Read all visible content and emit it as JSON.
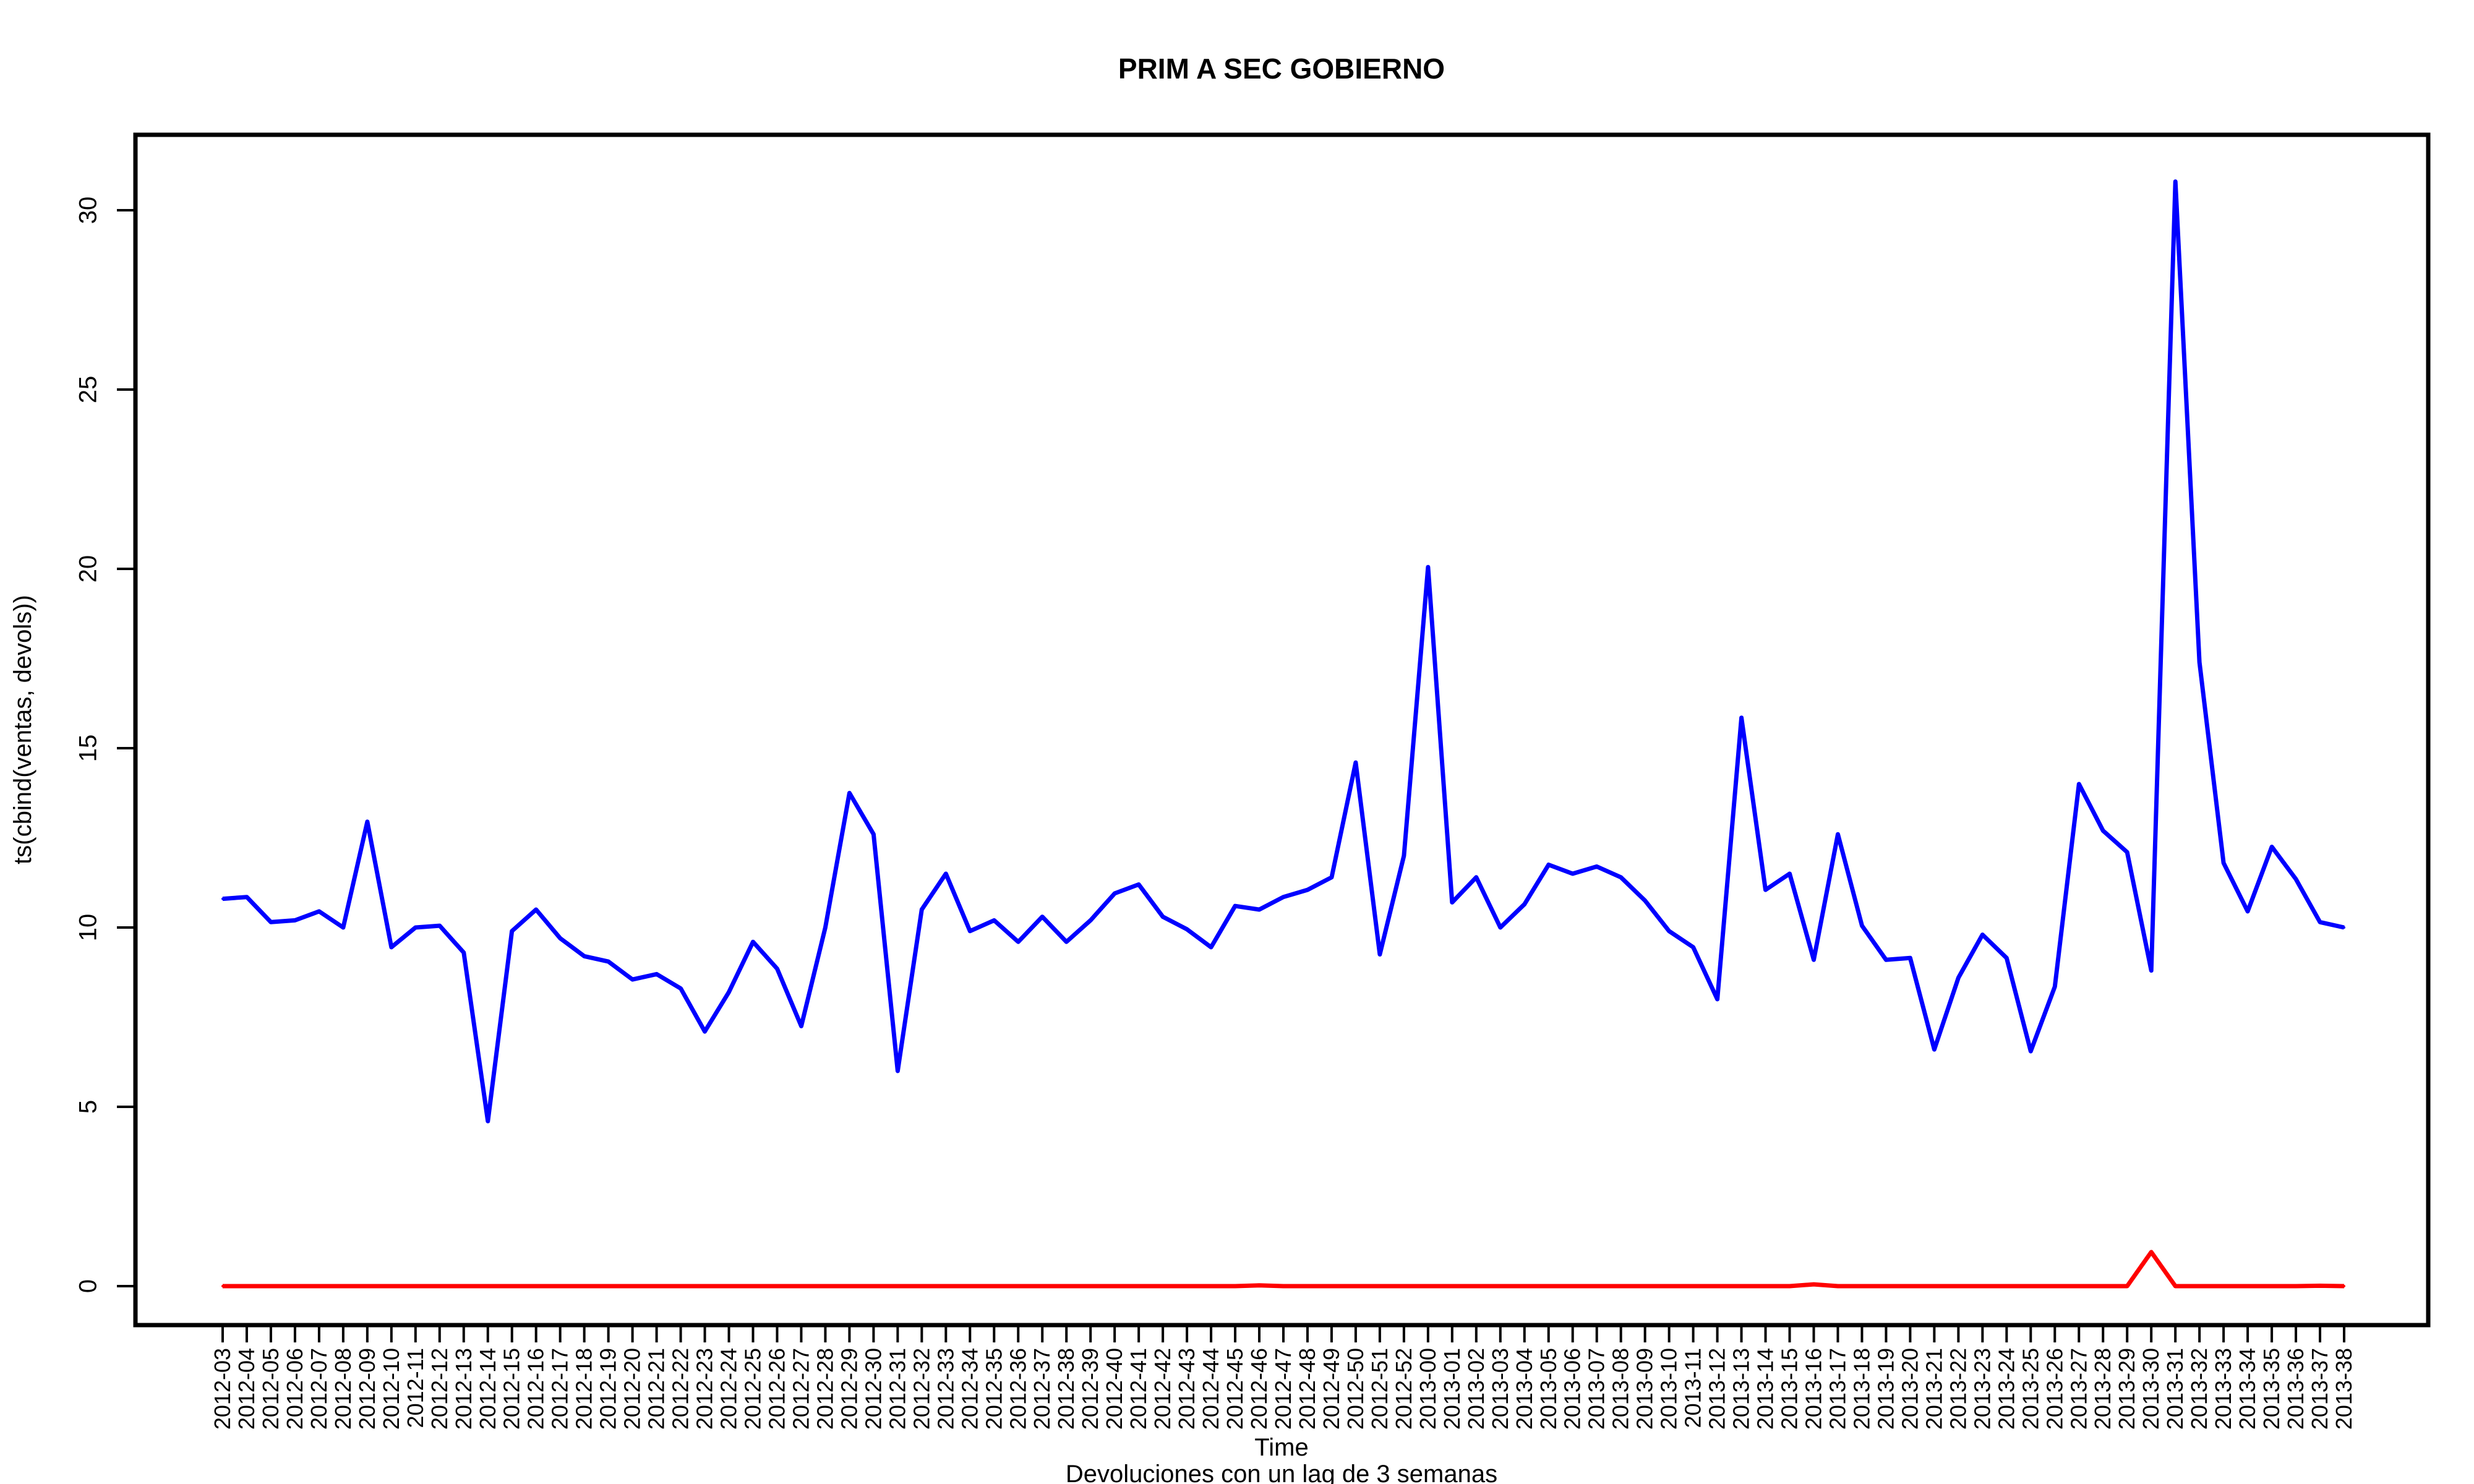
{
  "chart_data": {
    "type": "line",
    "title": "PRIM A SEC GOBIERNO",
    "xlabel": "Time",
    "ylabel": "ts(cbind(ventas, devols))",
    "subtitle": "Devoluciones con un lag de 3 semanas",
    "ylim": [
      -1.2,
      32
    ],
    "yticks": [
      0,
      5,
      10,
      15,
      20,
      25,
      30
    ],
    "ytick_labels": [
      "0",
      "5",
      "10",
      "15",
      "20",
      "25",
      "30"
    ],
    "grid": false,
    "categories": [
      "2012-03",
      "2012-04",
      "2012-05",
      "2012-06",
      "2012-07",
      "2012-08",
      "2012-09",
      "2012-10",
      "2012-11",
      "2012-12",
      "2012-13",
      "2012-14",
      "2012-15",
      "2012-16",
      "2012-17",
      "2012-18",
      "2012-19",
      "2012-20",
      "2012-21",
      "2012-22",
      "2012-23",
      "2012-24",
      "2012-25",
      "2012-26",
      "2012-27",
      "2012-28",
      "2012-29",
      "2012-30",
      "2012-31",
      "2012-32",
      "2012-33",
      "2012-34",
      "2012-35",
      "2012-36",
      "2012-37",
      "2012-38",
      "2012-39",
      "2012-40",
      "2012-41",
      "2012-42",
      "2012-43",
      "2012-44",
      "2012-45",
      "2012-46",
      "2012-47",
      "2012-48",
      "2012-49",
      "2012-50",
      "2012-51",
      "2012-52",
      "2013-00",
      "2013-01",
      "2013-02",
      "2013-03",
      "2013-04",
      "2013-05",
      "2013-06",
      "2013-07",
      "2013-08",
      "2013-09",
      "2013-10",
      "2013-11",
      "2013-12",
      "2013-13",
      "2013-14",
      "2013-15",
      "2013-16",
      "2013-17",
      "2013-18",
      "2013-19",
      "2013-20",
      "2013-21",
      "2013-22",
      "2013-23",
      "2013-24",
      "2013-25",
      "2013-26",
      "2013-27",
      "2013-28",
      "2013-29",
      "2013-30",
      "2013-31",
      "2013-32",
      "2013-33",
      "2013-34",
      "2013-35",
      "2013-36",
      "2013-37",
      "2013-38"
    ],
    "series": [
      {
        "name": "ventas",
        "color": "#0000ff",
        "values": [
          10.8,
          10.85,
          10.15,
          10.2,
          10.45,
          10.0,
          12.95,
          9.45,
          10.0,
          10.05,
          9.3,
          4.6,
          9.9,
          10.5,
          9.7,
          9.2,
          9.05,
          8.55,
          8.7,
          8.3,
          7.1,
          8.2,
          9.6,
          8.85,
          7.25,
          10.0,
          13.75,
          12.6,
          6.0,
          10.5,
          11.5,
          9.9,
          10.2,
          9.6,
          10.3,
          9.6,
          10.2,
          10.95,
          11.2,
          10.3,
          9.95,
          9.45,
          10.6,
          10.5,
          10.85,
          11.05,
          11.4,
          14.6,
          9.25,
          12.0,
          20.05,
          10.7,
          11.4,
          10.0,
          10.65,
          11.75,
          11.5,
          11.7,
          11.4,
          10.75,
          9.9,
          9.45,
          8.0,
          15.85,
          11.05,
          11.5,
          9.1,
          12.6,
          10.05,
          9.1,
          9.15,
          6.6,
          8.6,
          9.8,
          9.15,
          6.55,
          8.35,
          14.0,
          12.7,
          12.1,
          8.8,
          30.8,
          17.4,
          11.8,
          10.45,
          12.25,
          11.35,
          10.15,
          10.0
        ]
      },
      {
        "name": "devols",
        "color": "#ff0000",
        "values": [
          0,
          0,
          0,
          0,
          0,
          0,
          0,
          0,
          0,
          0,
          0,
          0,
          0,
          0,
          0,
          0,
          0,
          0,
          0,
          0,
          0,
          0,
          0,
          0,
          0,
          0,
          0,
          0,
          0,
          0,
          0,
          0,
          0,
          0,
          0,
          0,
          0,
          0,
          0,
          0,
          0,
          0,
          0,
          0.02,
          0,
          0,
          0,
          0,
          0,
          0,
          0,
          0,
          0,
          0,
          0,
          0,
          0,
          0,
          0,
          0,
          0,
          0,
          0,
          0,
          0,
          0,
          0.05,
          0,
          0,
          0,
          0,
          0,
          0,
          0,
          0,
          0,
          0,
          0,
          0,
          0,
          0.95,
          0,
          0,
          0,
          0,
          0,
          0,
          0.01,
          0
        ]
      }
    ]
  }
}
